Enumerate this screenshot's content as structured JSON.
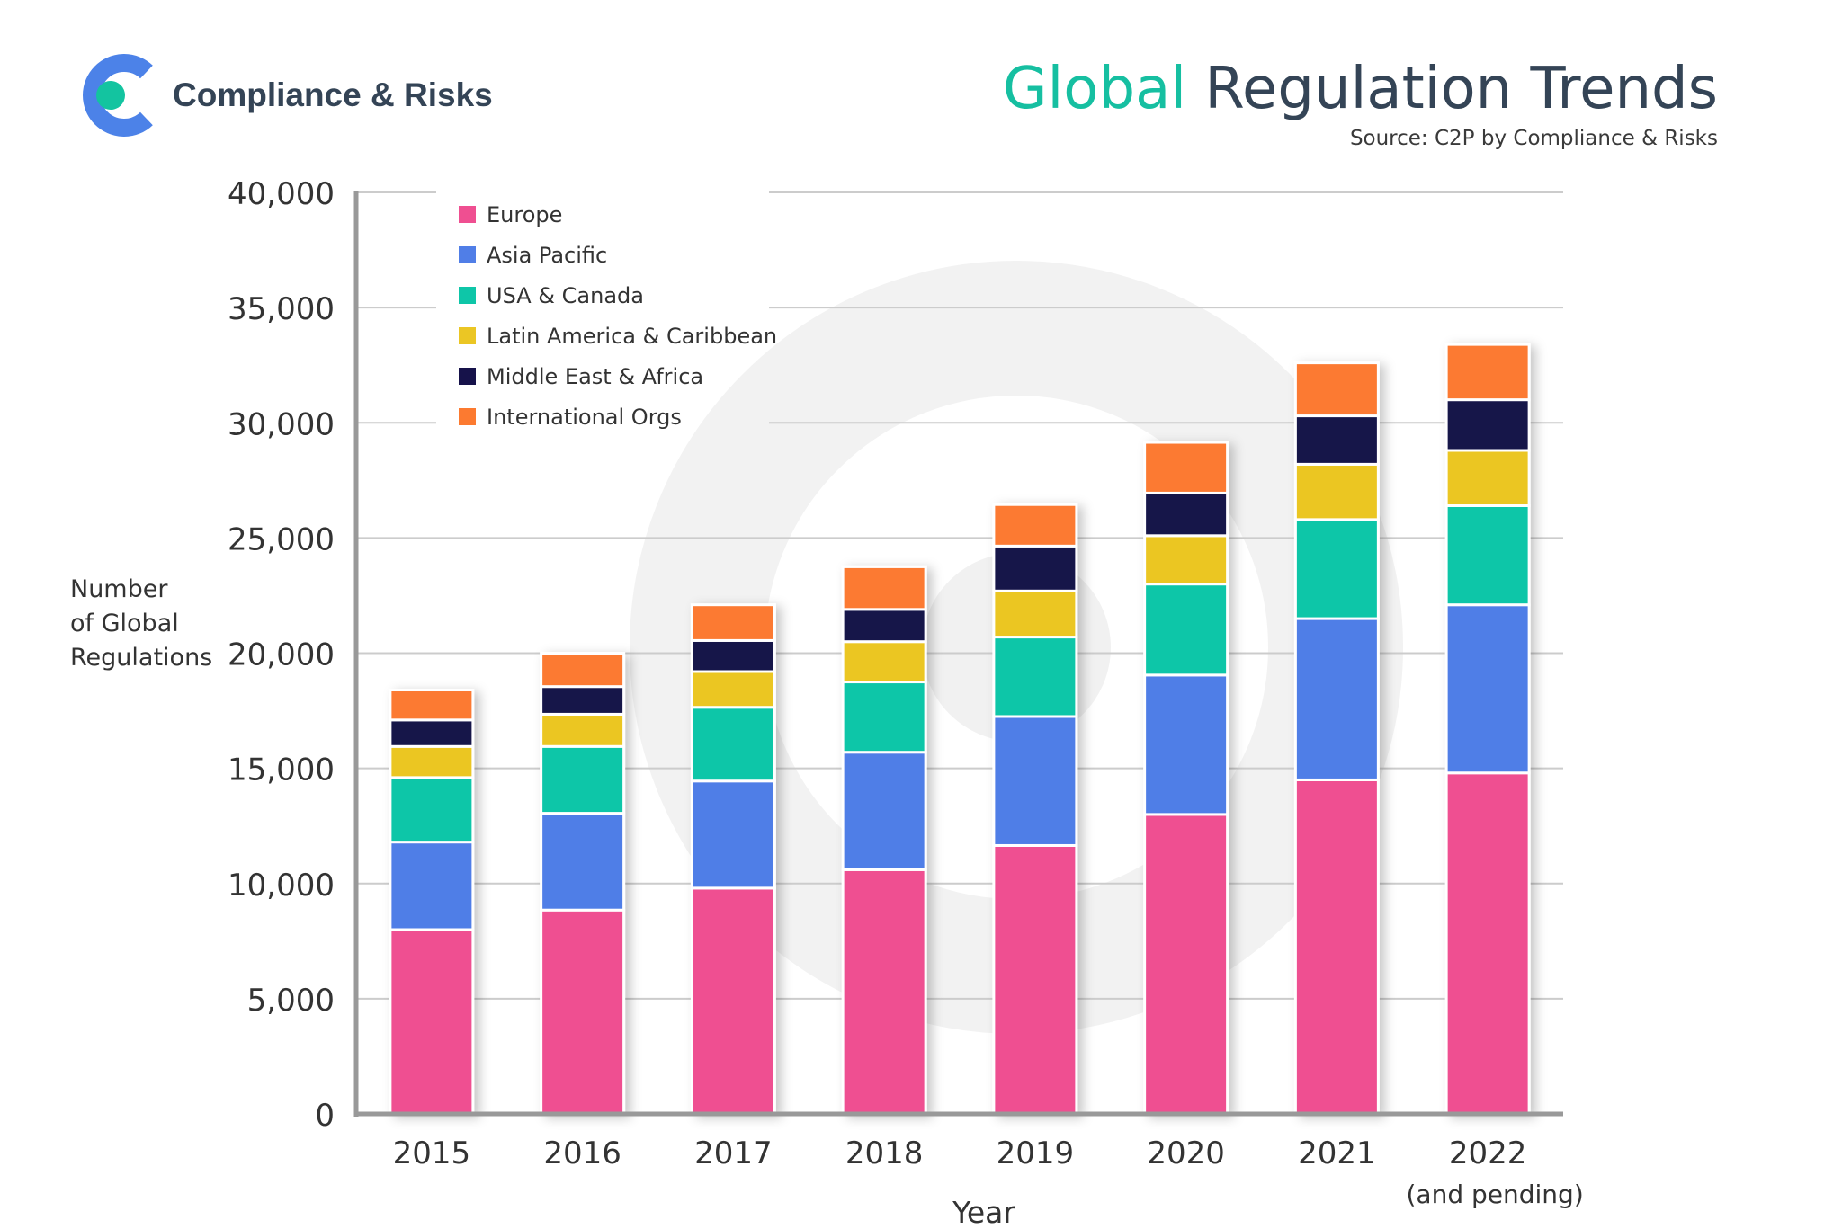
{
  "brand": {
    "name": "Compliance & Risks",
    "logo_icon": "c-ring-logo-icon",
    "colors": {
      "ring": "#4c82e8",
      "dot": "#13c4a0",
      "text": "#344456"
    }
  },
  "header": {
    "title_accent": "Global",
    "title_rest": "Regulation Trends",
    "source": "Source: C2P by Compliance & Risks",
    "colors": {
      "accent": "#16bfa1",
      "rest": "#344456"
    }
  },
  "chart_data": {
    "type": "bar",
    "stacked": true,
    "title": "Global Regulation Trends",
    "subtitle": "Source: C2P by Compliance & Risks",
    "categories": [
      "2015",
      "2016",
      "2017",
      "2018",
      "2019",
      "2020",
      "2021",
      "2022"
    ],
    "category_sublabels": [
      "",
      "",
      "",
      "",
      "",
      "",
      "",
      "(and pending)"
    ],
    "xlabel": "Year",
    "ylabel_lines": [
      "Number",
      "of Global",
      "Regulations"
    ],
    "ylim": [
      0,
      40000
    ],
    "yticks": [
      0,
      5000,
      10000,
      15000,
      20000,
      25000,
      30000,
      35000,
      40000
    ],
    "ytick_labels": [
      "0",
      "5,000",
      "10,000",
      "15,000",
      "20,000",
      "25,000",
      "30,000",
      "35,000",
      "40,000"
    ],
    "grid": true,
    "legend_position": "top-left",
    "series": [
      {
        "name": "Europe",
        "color": "#ef4f91",
        "values": [
          8000,
          8850,
          9800,
          10600,
          11650,
          13000,
          14500,
          14800
        ]
      },
      {
        "name": "Asia Pacific",
        "color": "#507ee7",
        "values": [
          3800,
          4200,
          4650,
          5100,
          5600,
          6050,
          7000,
          7300
        ]
      },
      {
        "name": "USA & Canada",
        "color": "#0ec6a8",
        "values": [
          2800,
          2900,
          3200,
          3050,
          3450,
          3950,
          4300,
          4300
        ]
      },
      {
        "name": "Latin America & Caribbean",
        "color": "#ebc624",
        "values": [
          1350,
          1400,
          1550,
          1750,
          2000,
          2100,
          2400,
          2400
        ]
      },
      {
        "name": "Middle East & Africa",
        "color": "#16124a",
        "values": [
          1150,
          1200,
          1350,
          1400,
          1950,
          1850,
          2100,
          2200
        ]
      },
      {
        "name": "International Orgs",
        "color": "#fc7a30",
        "values": [
          1300,
          1450,
          1550,
          1850,
          1800,
          2200,
          2300,
          2400
        ]
      }
    ]
  }
}
